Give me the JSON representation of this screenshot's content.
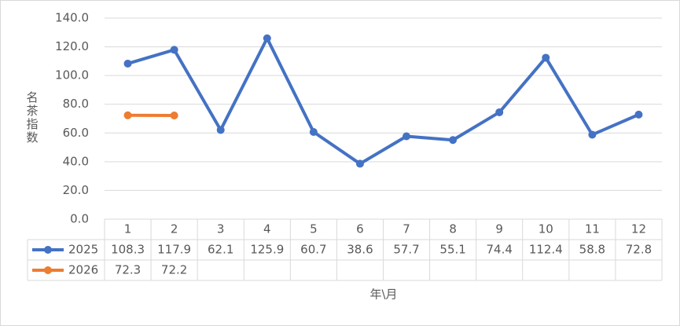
{
  "chart_data": {
    "type": "line",
    "x_label": "年\\月",
    "y_label": "名茶指数",
    "categories": [
      "1",
      "2",
      "3",
      "4",
      "5",
      "6",
      "7",
      "8",
      "9",
      "10",
      "11",
      "12"
    ],
    "series": [
      {
        "name": "2025",
        "color": "#4472c4",
        "values": [
          108.3,
          117.9,
          62.1,
          125.9,
          60.7,
          38.6,
          57.7,
          55.1,
          74.4,
          112.4,
          58.8,
          72.8
        ]
      },
      {
        "name": "2026",
        "color": "#ed7d31",
        "values": [
          72.3,
          72.2,
          null,
          null,
          null,
          null,
          null,
          null,
          null,
          null,
          null,
          null
        ]
      }
    ],
    "ylim": [
      0,
      140
    ],
    "yticks": [
      {
        "value": 0,
        "label": "0.0"
      },
      {
        "value": 20,
        "label": "20.0"
      },
      {
        "value": 40,
        "label": "40.0"
      },
      {
        "value": 60,
        "label": "60.0"
      },
      {
        "value": 80,
        "label": "80.0"
      },
      {
        "value": 100,
        "label": "100.0"
      },
      {
        "value": 120,
        "label": "120.0"
      },
      {
        "value": 140,
        "label": "140.0"
      }
    ],
    "grid": true,
    "data_table": true
  }
}
